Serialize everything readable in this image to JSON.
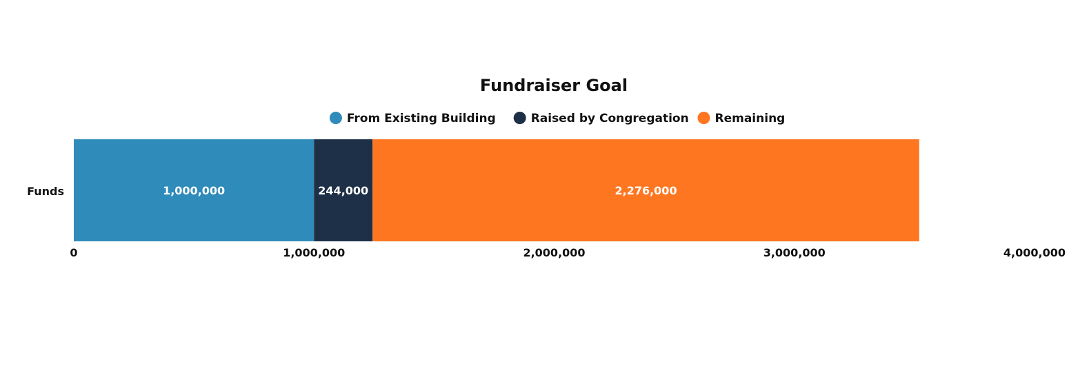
{
  "chart_data": {
    "type": "bar",
    "orientation": "horizontal",
    "stacked": true,
    "title": "Fundraiser Goal",
    "categories": [
      "Funds"
    ],
    "series": [
      {
        "name": "From Existing Building",
        "values": [
          1000000
        ],
        "labels": [
          "1,000,000"
        ],
        "color": "#2E8BBA"
      },
      {
        "name": "Raised by Congregation",
        "values": [
          244000
        ],
        "labels": [
          "244,000"
        ],
        "color": "#1D3048"
      },
      {
        "name": "Remaining",
        "values": [
          2276000
        ],
        "labels": [
          "2,276,000"
        ],
        "color": "#FF7621"
      }
    ],
    "xaxis": {
      "range": [
        0,
        4000000
      ],
      "ticks": [
        0,
        1000000,
        2000000,
        3000000,
        4000000
      ],
      "tick_labels": [
        "0",
        "1,000,000",
        "2,000,000",
        "3,000,000",
        "4,000,000"
      ]
    },
    "legend": {
      "position": "top-center"
    },
    "grid": false
  }
}
